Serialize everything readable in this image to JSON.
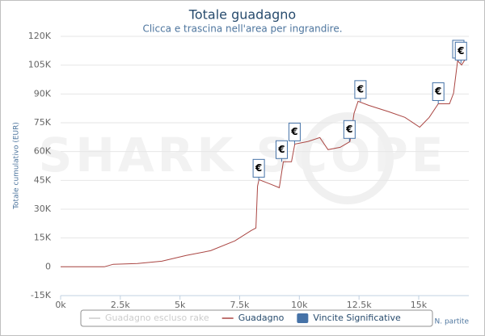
{
  "chart_data": {
    "type": "line",
    "title": "Totale guadagno",
    "subtitle": "Clicca e trascina nell'area per ingrandire.",
    "watermark": "SHARK SCOPE",
    "y_label": "Totale cumulativo (EUR)",
    "x_label": "N. partite",
    "xlim": [
      0,
      17100
    ],
    "ylim": [
      -15000,
      120000
    ],
    "xticks": [
      {
        "value": 0,
        "label": "0k"
      },
      {
        "value": 2500,
        "label": "2.5k"
      },
      {
        "value": 5000,
        "label": "5k"
      },
      {
        "value": 7500,
        "label": "7.5k"
      },
      {
        "value": 10000,
        "label": "10k"
      },
      {
        "value": 12500,
        "label": "12.5k"
      },
      {
        "value": 15000,
        "label": "15k"
      }
    ],
    "yticks": [
      {
        "value": -15000,
        "label": "-15K"
      },
      0,
      {
        "value": 15000,
        "label": "15K"
      },
      {
        "value": 30000,
        "label": "30K"
      },
      {
        "value": 45000,
        "label": "45K"
      },
      {
        "value": 60000,
        "label": "60K"
      },
      {
        "value": 75000,
        "label": "75K"
      },
      {
        "value": 90000,
        "label": "90K"
      },
      {
        "value": 105000,
        "label": "105K"
      },
      {
        "value": 120000,
        "label": "120K"
      }
    ],
    "grid": true,
    "x": [
      0,
      1830,
      2200,
      3220,
      4240,
      5260,
      6280,
      7300,
      7980,
      8180,
      8250,
      8310,
      8820,
      9160,
      9330,
      9670,
      9810,
      10350,
      10860,
      11200,
      11710,
      12120,
      12290,
      12460,
      12900,
      13750,
      14420,
      15040,
      15440,
      15820,
      16290,
      16460,
      16630,
      16800,
      16970
    ],
    "series": [
      {
        "name": "Guadagno escluso rake",
        "color": "#cccccc",
        "visible": false
      },
      {
        "name": "Guadagno",
        "color": "#aa4643",
        "visible": true,
        "values": [
          0,
          0,
          1300,
          1700,
          2900,
          5900,
          8400,
          13500,
          18900,
          20200,
          42000,
          45400,
          42900,
          41200,
          54700,
          54700,
          63900,
          65200,
          67300,
          61000,
          62200,
          65200,
          79900,
          86200,
          84100,
          80700,
          77800,
          72700,
          77800,
          84900,
          84900,
          90400,
          107200,
          105100,
          108500
        ]
      }
    ],
    "flags": {
      "name": "Vincite Significative",
      "color": "#4572a7",
      "label": "€",
      "x": [
        8300,
        9260,
        9800,
        12100,
        12560,
        15820,
        16660,
        16770
      ],
      "values": [
        45000,
        54700,
        63900,
        65200,
        86000,
        84900,
        107000,
        106000
      ]
    }
  }
}
